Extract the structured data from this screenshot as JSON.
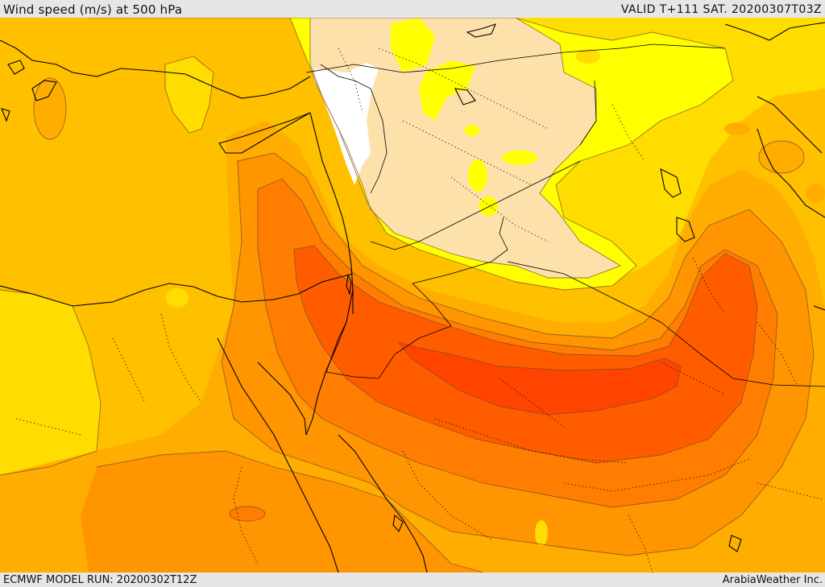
{
  "header": {
    "title": "Wind speed (m/s) at 500 hPa",
    "valid_time": "VALID T+111 SAT. 20200307T03Z"
  },
  "footer": {
    "model_run": "ECMWF MODEL RUN: 20200302T12Z",
    "credit": "ArabiaWeather Inc."
  },
  "colors": {
    "white": "#ffffff",
    "very_light": "#fde1aa",
    "yellow": "#ffff00",
    "gold": "#ffdd00",
    "amber": "#ffc000",
    "orange_light": "#ffad00",
    "orange": "#ff9500",
    "dark_orange": "#ff7d00",
    "red_orange": "#ff5c00",
    "red": "#ff4400",
    "contour": "#8a5a3a",
    "coast": "#000000"
  }
}
